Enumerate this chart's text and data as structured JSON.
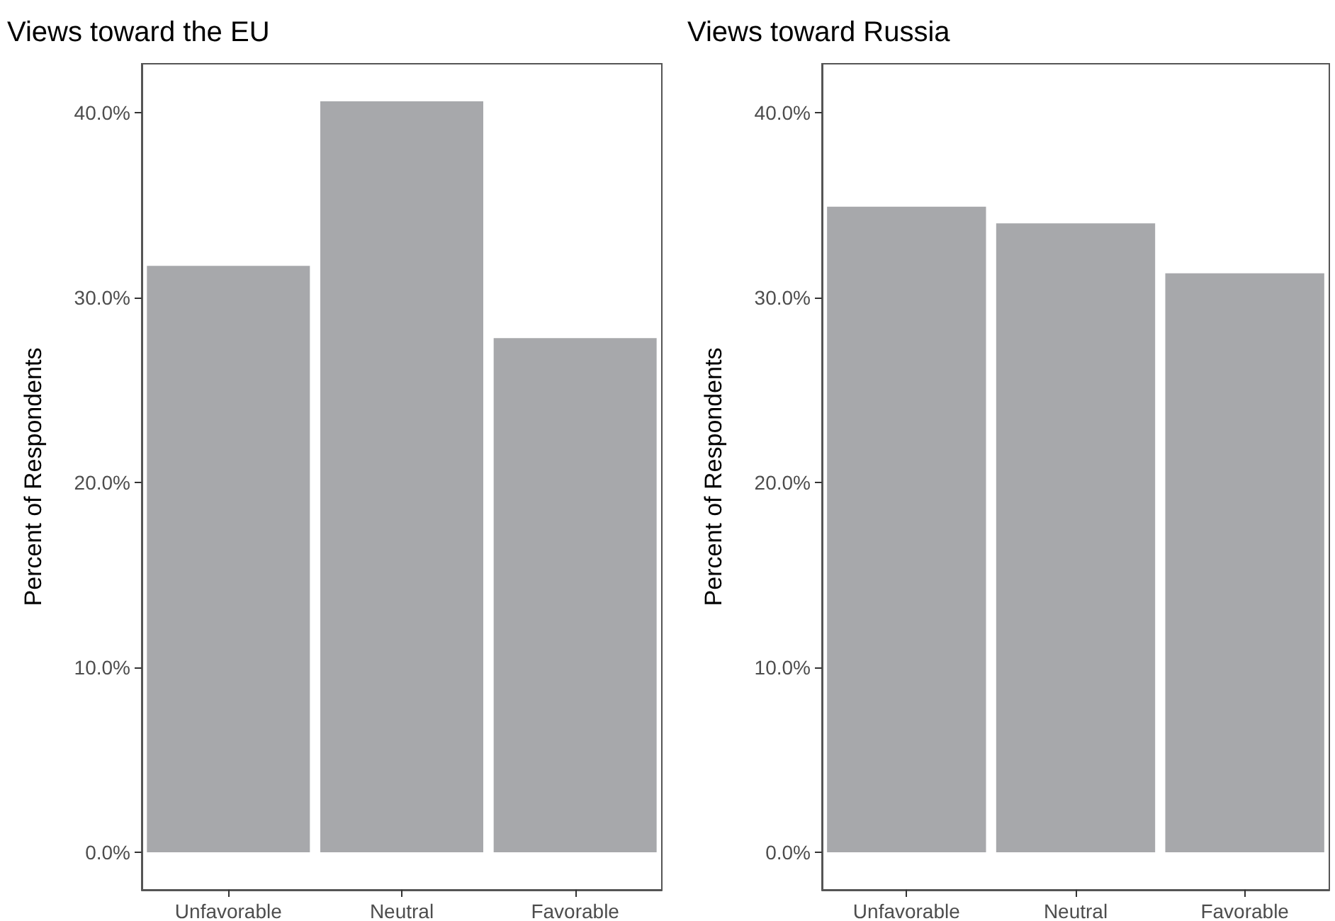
{
  "chart_data": [
    {
      "type": "bar",
      "title": "Views toward the EU",
      "ylabel": "Percent of Respondents",
      "categories": [
        "Unfavorable",
        "Neutral",
        "Favorable"
      ],
      "values": [
        31.7,
        40.6,
        27.8
      ],
      "color": "#a7a8ab",
      "ylim": [
        -2.03,
        42.63
      ],
      "yticks": [
        {
          "value": 0,
          "label": "0.0%"
        },
        {
          "value": 10,
          "label": "10.0%"
        },
        {
          "value": 20,
          "label": "20.0%"
        },
        {
          "value": 30,
          "label": "30.0%"
        },
        {
          "value": 40,
          "label": "40.0%"
        }
      ],
      "grid": false
    },
    {
      "type": "bar",
      "title": "Views toward Russia",
      "ylabel": "Percent of Respondents",
      "categories": [
        "Unfavorable",
        "Neutral",
        "Favorable"
      ],
      "values": [
        34.9,
        34.0,
        31.3
      ],
      "color": "#a7a8ab",
      "ylim": [
        -2.03,
        42.63
      ],
      "yticks": [
        {
          "value": 0,
          "label": "0.0%"
        },
        {
          "value": 10,
          "label": "10.0%"
        },
        {
          "value": 20,
          "label": "20.0%"
        },
        {
          "value": 30,
          "label": "30.0%"
        },
        {
          "value": 40,
          "label": "40.0%"
        }
      ],
      "grid": false
    }
  ]
}
